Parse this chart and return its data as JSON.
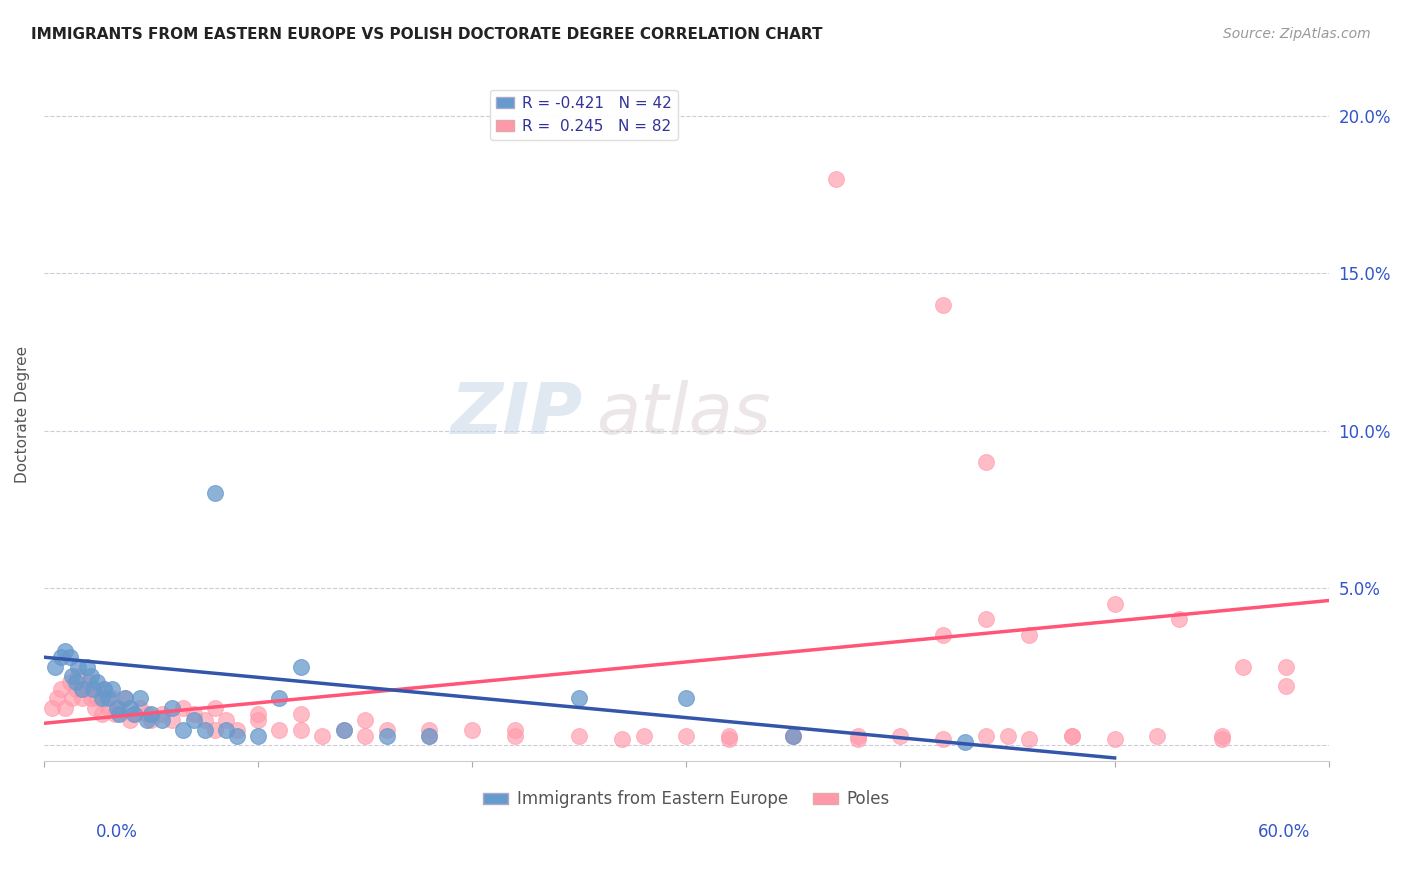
{
  "title": "IMMIGRANTS FROM EASTERN EUROPE VS POLISH DOCTORATE DEGREE CORRELATION CHART",
  "source": "Source: ZipAtlas.com",
  "ylabel": "Doctorate Degree",
  "yticks": [
    0.0,
    0.05,
    0.1,
    0.15,
    0.2
  ],
  "ytick_labels": [
    "",
    "5.0%",
    "10.0%",
    "15.0%",
    "20.0%"
  ],
  "xlim": [
    0.0,
    0.6
  ],
  "ylim": [
    -0.005,
    0.215
  ],
  "legend1_label": "R = -0.421   N = 42",
  "legend2_label": "R =  0.245   N = 82",
  "legend_bottom_label1": "Immigrants from Eastern Europe",
  "legend_bottom_label2": "Poles",
  "blue_color": "#6699CC",
  "blue_dark": "#3355AA",
  "pink_color": "#FF99AA",
  "pink_dark": "#FF5577",
  "blue_scatter_x": [
    0.005,
    0.008,
    0.01,
    0.012,
    0.013,
    0.015,
    0.016,
    0.018,
    0.02,
    0.022,
    0.023,
    0.025,
    0.027,
    0.028,
    0.03,
    0.032,
    0.034,
    0.035,
    0.038,
    0.04,
    0.042,
    0.045,
    0.048,
    0.05,
    0.055,
    0.06,
    0.065,
    0.07,
    0.075,
    0.08,
    0.085,
    0.09,
    0.1,
    0.11,
    0.12,
    0.14,
    0.16,
    0.18,
    0.25,
    0.3,
    0.35,
    0.43
  ],
  "blue_scatter_y": [
    0.025,
    0.028,
    0.03,
    0.028,
    0.022,
    0.02,
    0.025,
    0.018,
    0.025,
    0.022,
    0.018,
    0.02,
    0.015,
    0.018,
    0.015,
    0.018,
    0.012,
    0.01,
    0.015,
    0.012,
    0.01,
    0.015,
    0.008,
    0.01,
    0.008,
    0.012,
    0.005,
    0.008,
    0.005,
    0.08,
    0.005,
    0.003,
    0.003,
    0.015,
    0.025,
    0.005,
    0.003,
    0.003,
    0.015,
    0.015,
    0.003,
    0.001
  ],
  "pink_scatter_x": [
    0.004,
    0.006,
    0.008,
    0.01,
    0.012,
    0.013,
    0.015,
    0.016,
    0.018,
    0.02,
    0.021,
    0.022,
    0.024,
    0.025,
    0.027,
    0.028,
    0.03,
    0.032,
    0.033,
    0.035,
    0.038,
    0.04,
    0.042,
    0.045,
    0.048,
    0.05,
    0.055,
    0.06,
    0.065,
    0.07,
    0.075,
    0.08,
    0.085,
    0.09,
    0.1,
    0.11,
    0.12,
    0.13,
    0.14,
    0.15,
    0.16,
    0.18,
    0.2,
    0.22,
    0.25,
    0.27,
    0.3,
    0.32,
    0.35,
    0.38,
    0.4,
    0.42,
    0.44,
    0.46,
    0.48,
    0.5,
    0.52,
    0.55,
    0.37,
    0.42,
    0.44,
    0.5,
    0.53,
    0.56,
    0.58,
    0.44,
    0.46,
    0.35,
    0.28,
    0.32,
    0.15,
    0.18,
    0.22,
    0.08,
    0.1,
    0.12,
    0.45,
    0.38,
    0.55,
    0.58,
    0.42,
    0.48
  ],
  "pink_scatter_y": [
    0.012,
    0.015,
    0.018,
    0.012,
    0.02,
    0.015,
    0.018,
    0.022,
    0.015,
    0.018,
    0.02,
    0.015,
    0.012,
    0.015,
    0.01,
    0.018,
    0.012,
    0.015,
    0.01,
    0.012,
    0.015,
    0.008,
    0.01,
    0.012,
    0.01,
    0.008,
    0.01,
    0.008,
    0.012,
    0.01,
    0.008,
    0.005,
    0.008,
    0.005,
    0.008,
    0.005,
    0.005,
    0.003,
    0.005,
    0.003,
    0.005,
    0.003,
    0.005,
    0.003,
    0.003,
    0.002,
    0.003,
    0.002,
    0.003,
    0.002,
    0.003,
    0.002,
    0.003,
    0.002,
    0.003,
    0.002,
    0.003,
    0.002,
    0.18,
    0.14,
    0.09,
    0.045,
    0.04,
    0.025,
    0.019,
    0.04,
    0.035,
    0.003,
    0.003,
    0.003,
    0.008,
    0.005,
    0.005,
    0.012,
    0.01,
    0.01,
    0.003,
    0.003,
    0.003,
    0.025,
    0.035,
    0.003
  ],
  "blue_trend_x": [
    0.0,
    0.5
  ],
  "blue_trend_y": [
    0.028,
    -0.004
  ],
  "pink_trend_x": [
    0.0,
    0.6
  ],
  "pink_trend_y": [
    0.007,
    0.046
  ],
  "watermark_zip": "ZIP",
  "watermark_atlas": "atlas",
  "background_color": "#ffffff",
  "grid_color": "#ccccdd",
  "label_color": "#3355CC"
}
